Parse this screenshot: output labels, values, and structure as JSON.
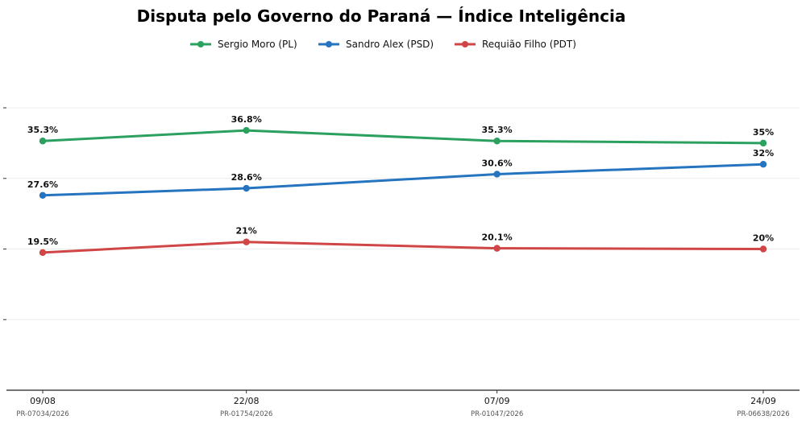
{
  "chart_data": {
    "type": "line",
    "title": "Disputa pelo Governo do Paraná — Índice Inteligência",
    "categories": [
      "09/08",
      "22/08",
      "07/09",
      "24/09"
    ],
    "category_sublabels": [
      "PR-07034/2026",
      "PR-01754/2026",
      "PR-01047/2026",
      "PR-06638/2026"
    ],
    "x_positions_days": [
      0,
      13,
      29,
      46
    ],
    "series": [
      {
        "name": "Sergio Moro (PL)",
        "color": "#2ca05f",
        "values": [
          35.3,
          36.8,
          35.3,
          35
        ],
        "labels": [
          "35.3%",
          "36.8%",
          "35.3%",
          "35%"
        ]
      },
      {
        "name": "Sandro Alex (PSD)",
        "color": "#2574c0",
        "values": [
          27.6,
          28.6,
          30.6,
          32
        ],
        "labels": [
          "27.6%",
          "28.6%",
          "30.6%",
          "32%"
        ]
      },
      {
        "name": "Requião Filho (PDT)",
        "color": "#d04545",
        "values": [
          19.5,
          21,
          20.1,
          20
        ],
        "labels": [
          "19.5%",
          "21%",
          "20.1%",
          "20%"
        ]
      }
    ],
    "ylim": [
      0,
      40
    ],
    "y_ticks": [
      10,
      20,
      30,
      40
    ],
    "y_tick_labels_visible": false,
    "grid": "horizontal-light",
    "legend_position": "top-center",
    "xlabel": "",
    "ylabel": ""
  }
}
